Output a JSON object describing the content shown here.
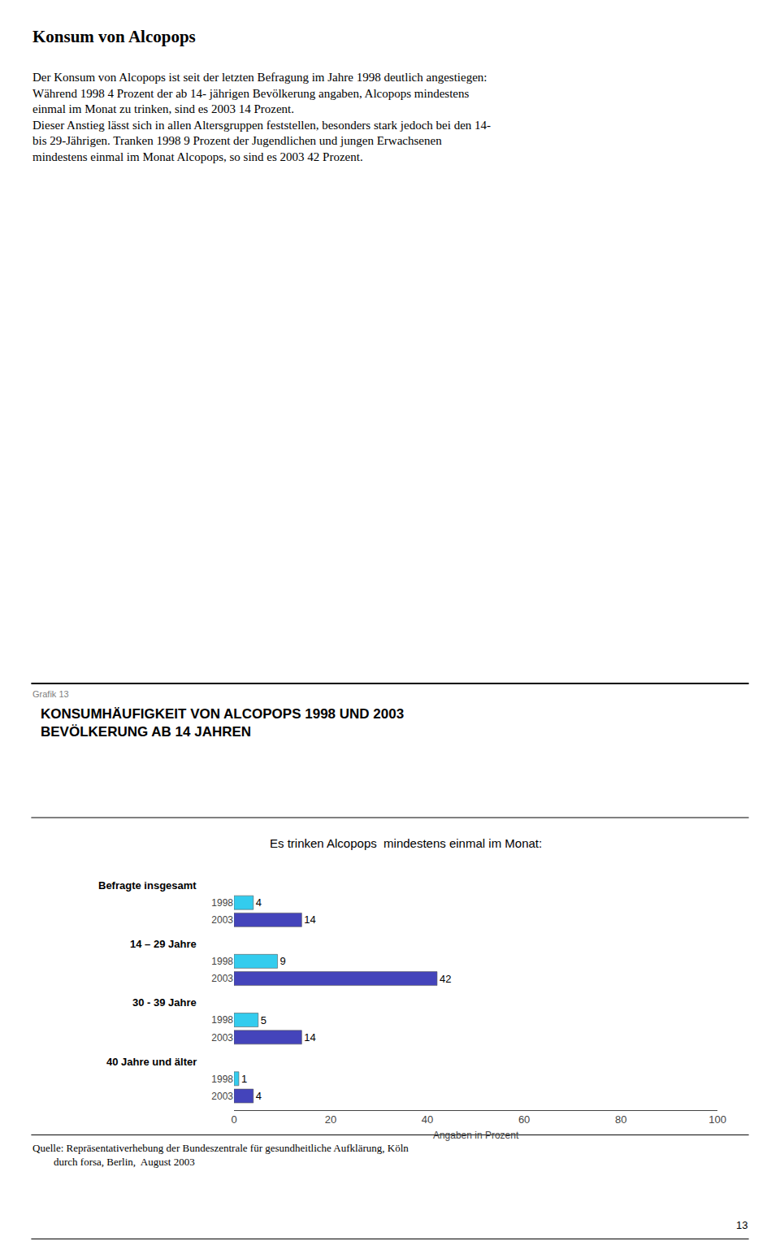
{
  "chart_data": {
    "type": "bar",
    "orientation": "horizontal",
    "title": "KONSUMHÄUFIGKEIT VON ALCOPOPS 1998 UND 2003\nBEVÖLKERUNG AB 14 JAHREN",
    "subtitle": "Es trinken Alcopops  mindestens einmal im Monat:",
    "annotations": [
      "Konsum von Alcopops",
      "Der Konsum von Alcopops ist seit der letzten Befragung im Jahre 1998 deutlich angestiegen:\nWährend 1998 4 Prozent der ab 14- jährigen Bevölkerung angaben, Alcopops mindestens\neinmal im Monat zu trinken, sind es 2003 14 Prozent.\nDieser Anstieg lässt sich in allen Altersgruppen feststellen, besonders stark jedoch bei den 14-\nbis 29-Jährigen. Tranken 1998 9 Prozent der Jugendlichen und jungen Erwachsenen\nmindestens einmal im Monat Alcopops, so sind es 2003 42 Prozent.",
      "Grafik 13",
      "Quelle: Repräsentativerhebung der Bundeszentrale für gesundheitliche Aufklärung, Köln\n        durch forsa, Berlin,  August 2003",
      "13"
    ],
    "categories": [
      "Befragte insgesamt",
      "14 – 29 Jahre",
      "30 - 39 Jahre",
      "40 Jahre und älter"
    ],
    "series": [
      {
        "name": "1998",
        "color": "#33CCEE",
        "values": [
          4,
          9,
          5,
          1
        ]
      },
      {
        "name": "2003",
        "color": "#4444BB",
        "values": [
          14,
          42,
          14,
          4
        ]
      }
    ],
    "xlabel": "Angaben in Prozent",
    "xlim": [
      0,
      100
    ],
    "xticks": [
      0,
      20,
      40,
      60,
      80,
      100
    ],
    "data_labels": true,
    "grid": false
  }
}
